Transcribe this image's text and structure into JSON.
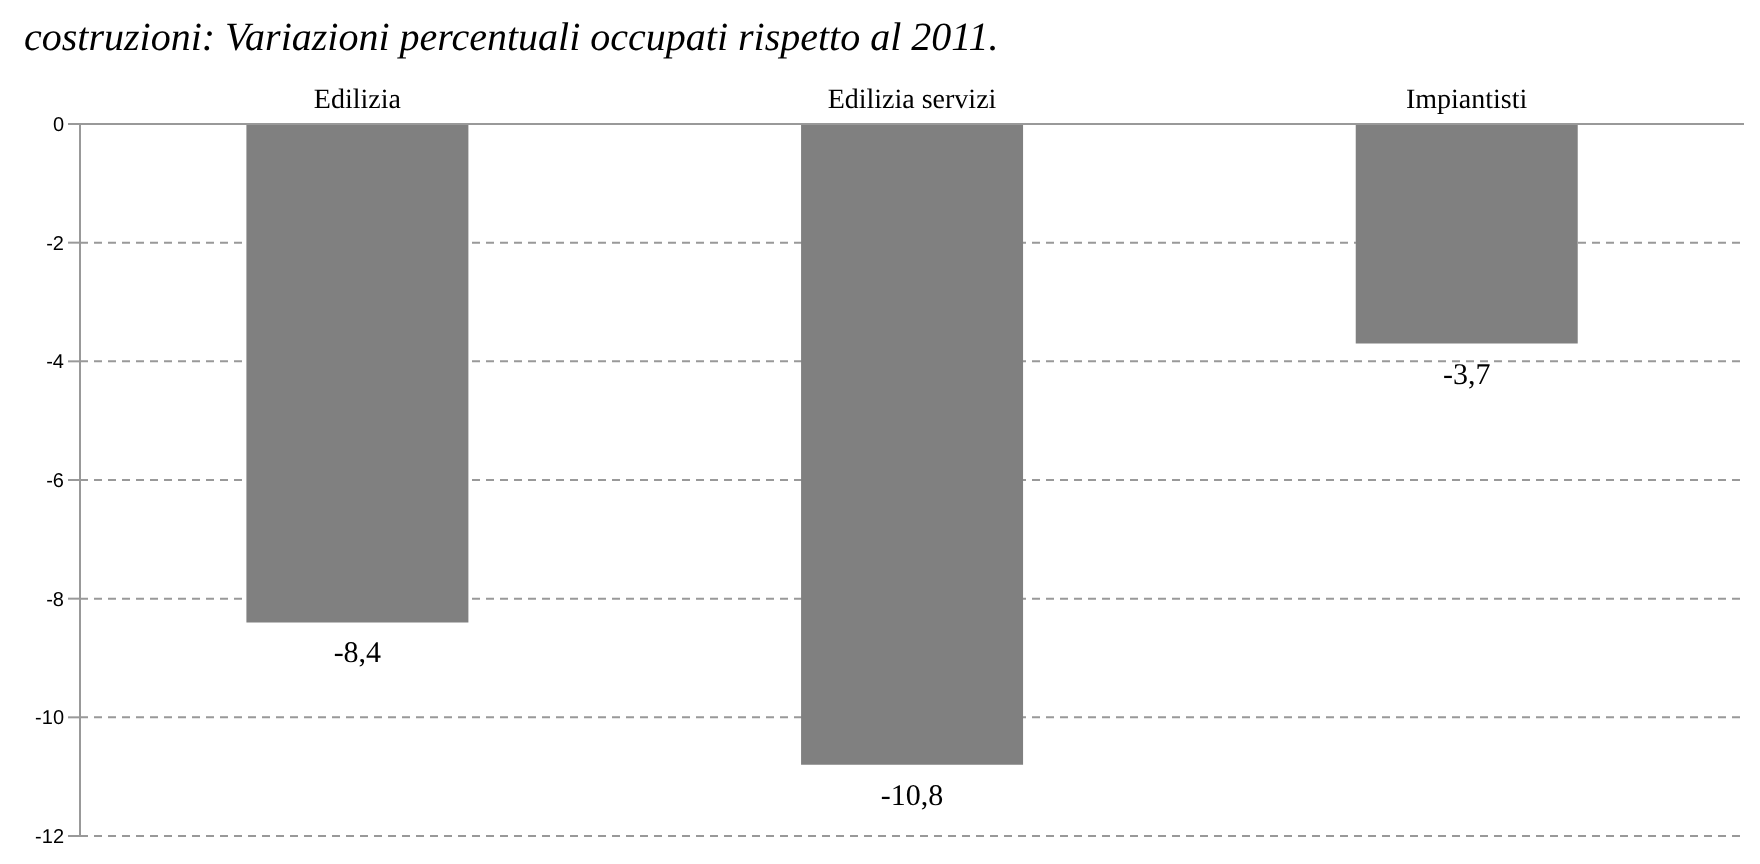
{
  "chart_data": {
    "type": "bar",
    "title": "costruzioni: Variazioni percentuali occupati rispetto al 2011.",
    "categories": [
      "Edilizia",
      "Edilizia servizi",
      "Impiantisti"
    ],
    "values": [
      -8.4,
      -10.8,
      -3.7
    ],
    "value_labels": [
      "-8,4",
      "-10,8",
      "-3,7"
    ],
    "color": "#808080",
    "ylim": [
      -12,
      0
    ],
    "yticks": [
      -12,
      -10,
      -8,
      -6,
      -4,
      -2,
      0
    ],
    "grid": "y",
    "legend": false
  }
}
